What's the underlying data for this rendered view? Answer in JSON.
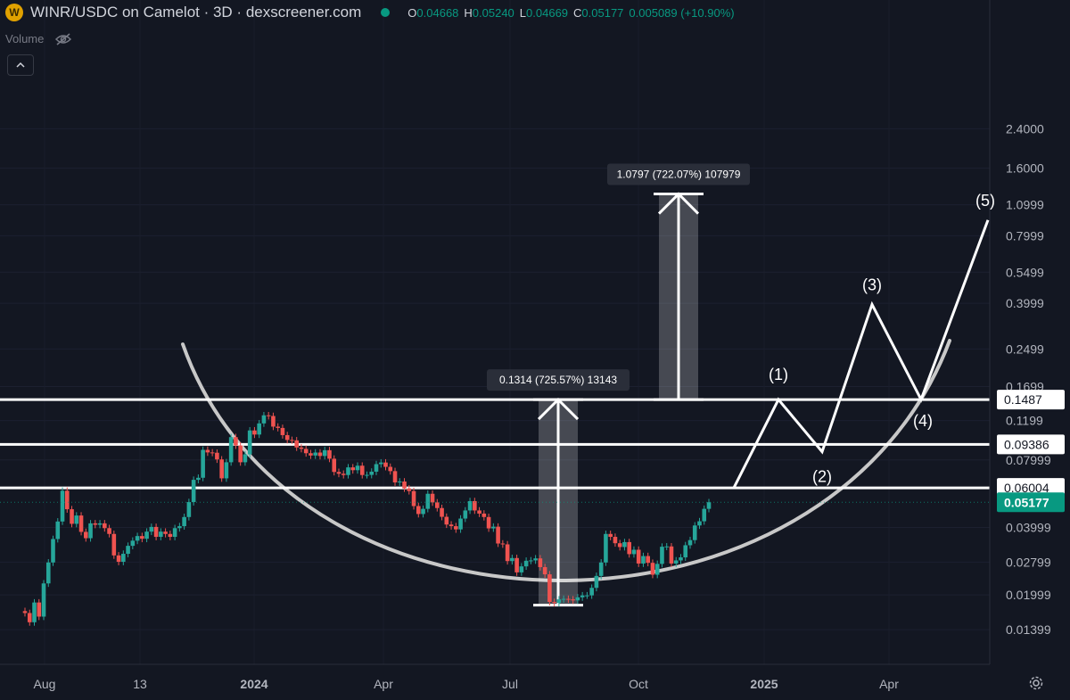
{
  "header": {
    "coin_letter": "W",
    "title": "WINR/USDC on Camelot · 3D · dexscreener.com",
    "ohlc": [
      {
        "k": "O",
        "v": "0.04668"
      },
      {
        "k": "H",
        "v": "0.05240"
      },
      {
        "k": "L",
        "v": "0.04669"
      },
      {
        "k": "C",
        "v": "0.05177"
      },
      {
        "k": "",
        "v": "0.005089 (+10.90%)"
      }
    ]
  },
  "volume_label": "Volume",
  "colors": {
    "background": "#131722",
    "up": "#26a69a",
    "down": "#ef5350",
    "axis_text": "#b2b5be",
    "annotation": "#ffffff",
    "curve": "#c8c8c8",
    "last_price_bg": "#089981"
  },
  "chart_data": {
    "type": "candlestick",
    "y_scale": "log",
    "ylim": [
      0.0118,
      2.4
    ],
    "y_ticks": [
      "2.4000",
      "1.6000",
      "1.0999",
      "0.7999",
      "0.5499",
      "0.3999",
      "0.2499",
      "0.1699",
      "0.1199",
      "0.07999",
      "0.03999",
      "0.02799",
      "0.01999",
      "0.01399"
    ],
    "x_ticks": [
      "Aug",
      "13",
      "2024",
      "Apr",
      "Jul",
      "Oct",
      "2025",
      "Apr"
    ],
    "price_labels": [
      {
        "text": "0.1487",
        "value": 0.1487,
        "style": "white"
      },
      {
        "text": "0.09386",
        "value": 0.09386,
        "style": "white"
      },
      {
        "text": "0.06004",
        "value": 0.06004,
        "style": "white"
      },
      {
        "text": "0.05177",
        "value": 0.05177,
        "style": "last"
      }
    ],
    "horizontal_levels": [
      0.1487,
      0.09386,
      0.06004
    ],
    "measure_boxes": [
      {
        "label": "0.1314 (725.57%) 13143",
        "from": 0.018,
        "to": 0.1487
      },
      {
        "label": "1.0797 (722.07%) 107979",
        "from": 0.1487,
        "to": 1.2284
      }
    ],
    "wave_labels": [
      "(1)",
      "(2)",
      "(3)",
      "(4)",
      "(5)"
    ],
    "close": [
      0.0166,
      0.0151,
      0.0185,
      0.016,
      0.0225,
      0.0279,
      0.0355,
      0.0425,
      0.0583,
      0.0482,
      0.0415,
      0.0452,
      0.0382,
      0.0358,
      0.0417,
      0.0411,
      0.0417,
      0.0397,
      0.0374,
      0.03,
      0.0281,
      0.0305,
      0.0331,
      0.0349,
      0.0366,
      0.0356,
      0.0383,
      0.0402,
      0.0363,
      0.0383,
      0.0374,
      0.0363,
      0.0397,
      0.0405,
      0.0445,
      0.0519,
      0.0652,
      0.0666,
      0.0887,
      0.0864,
      0.0861,
      0.0804,
      0.0662,
      0.0781,
      0.1011,
      0.0928,
      0.0781,
      0.0847,
      0.1083,
      0.1038,
      0.1164,
      0.1265,
      0.1256,
      0.1126,
      0.1111,
      0.1032,
      0.0982,
      0.0978,
      0.0909,
      0.0896,
      0.0857,
      0.0837,
      0.0863,
      0.0833,
      0.0884,
      0.081,
      0.0707,
      0.0694,
      0.0685,
      0.0741,
      0.072,
      0.0754,
      0.0685,
      0.0686,
      0.0709,
      0.0766,
      0.0779,
      0.0745,
      0.0713,
      0.0635,
      0.0641,
      0.0597,
      0.0581,
      0.0498,
      0.0459,
      0.0484,
      0.0565,
      0.0517,
      0.0488,
      0.0446,
      0.0412,
      0.0405,
      0.0392,
      0.0438,
      0.0476,
      0.0524,
      0.0476,
      0.0461,
      0.0445,
      0.0396,
      0.0403,
      0.0339,
      0.0336,
      0.0283,
      0.0292,
      0.0252,
      0.0268,
      0.0284,
      0.0285,
      0.0291,
      0.0266,
      0.0247,
      0.0186,
      0.0184,
      0.0191,
      0.0192,
      0.0191,
      0.0189,
      0.0195,
      0.0199,
      0.0199,
      0.0215,
      0.0243,
      0.0279,
      0.0374,
      0.0363,
      0.034,
      0.0327,
      0.0344,
      0.0304,
      0.0318,
      0.0276,
      0.0298,
      0.0278,
      0.0246,
      0.0275,
      0.0328,
      0.0329,
      0.0276,
      0.0285,
      0.0294,
      0.0333,
      0.0351,
      0.0408,
      0.0426,
      0.0484,
      0.0518
    ]
  }
}
